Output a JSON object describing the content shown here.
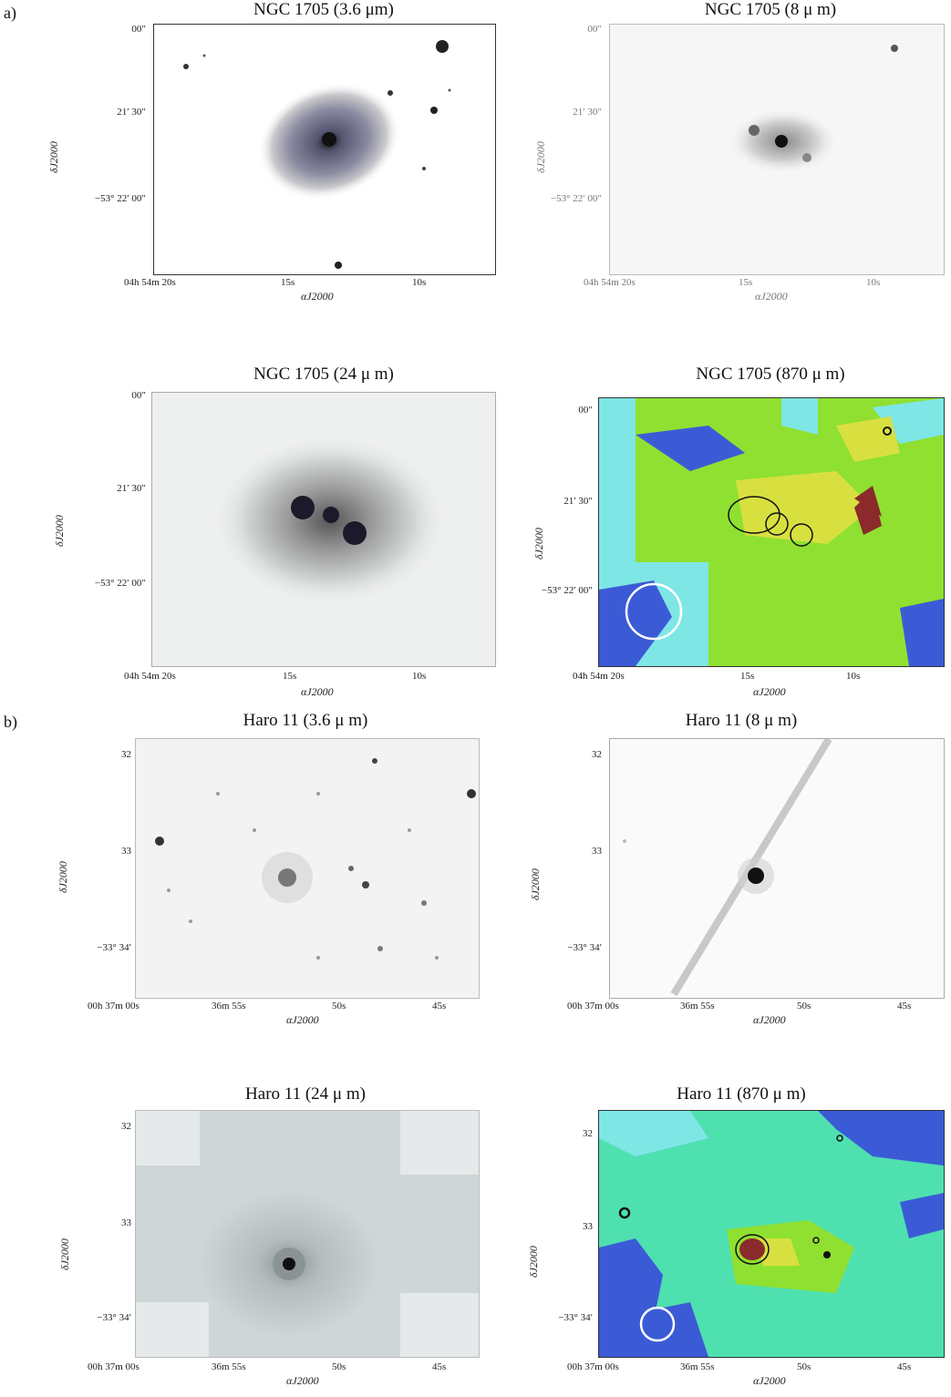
{
  "section_a": "a)",
  "section_b": "b)",
  "panels": {
    "p1": {
      "title": "NGC 1705 (3.6 μm)",
      "yticks": [
        "00″",
        "21′ 30″",
        "−53° 22′ 00″"
      ],
      "xticks": [
        "04h 54m 20s",
        "15s",
        "10s"
      ],
      "xlabel": "αJ2000",
      "ylabel": "δJ2000"
    },
    "p2": {
      "title": "NGC 1705 (8 μ m)",
      "yticks": [
        "00″",
        "21′ 30″",
        "−53° 22′ 00″"
      ],
      "xticks": [
        "04h 54m 20s",
        "15s",
        "10s"
      ],
      "xlabel": "αJ2000",
      "ylabel": "δJ2000"
    },
    "p3": {
      "title": "NGC 1705 (24 μ m)",
      "yticks": [
        "00″",
        "21′ 30″",
        "−53° 22′ 00″"
      ],
      "xticks": [
        "04h 54m 20s",
        "15s",
        "10s"
      ],
      "xlabel": "αJ2000",
      "ylabel": "δJ2000"
    },
    "p4": {
      "title": "NGC 1705 (870 μ m)",
      "yticks": [
        "00″",
        "21′ 30″",
        "−53° 22′ 00″"
      ],
      "xticks": [
        "04h 54m 20s",
        "15s",
        "10s"
      ],
      "xlabel": "αJ2000",
      "ylabel": "δJ2000"
    },
    "p5": {
      "title": "Haro 11 (3.6 μ m)",
      "yticks": [
        "32",
        "33",
        "−33° 34′"
      ],
      "xticks": [
        "00h 37m 00s",
        "36m 55s",
        "50s",
        "45s"
      ],
      "xlabel": "αJ2000",
      "ylabel": "δJ2000"
    },
    "p6": {
      "title": "Haro 11 (8 μ m)",
      "yticks": [
        "32",
        "33",
        "−33° 34′"
      ],
      "xticks": [
        "00h 37m 00s",
        "36m 55s",
        "50s",
        "45s"
      ],
      "xlabel": "αJ2000",
      "ylabel": "δJ2000"
    },
    "p7": {
      "title": "Haro 11 (24 μ m)",
      "yticks": [
        "32",
        "33",
        "−33° 34′"
      ],
      "xticks": [
        "00h 37m 00s",
        "36m 55s",
        "50s",
        "45s"
      ],
      "xlabel": "αJ2000",
      "ylabel": "δJ2000"
    },
    "p8": {
      "title": "Haro 11 (870 μ m)",
      "yticks": [
        "32",
        "33",
        "−33° 34′"
      ],
      "xticks": [
        "00h 37m 00s",
        "36m 55s",
        "50s",
        "45s"
      ],
      "xlabel": "αJ2000",
      "ylabel": "δJ2000"
    }
  },
  "colors": {
    "map_blue": "#3b5bd6",
    "map_cyan": "#7fe6e6",
    "map_teal": "#4fe0b0",
    "map_green": "#8fe030",
    "map_yellow": "#d8e040",
    "map_red": "#8a2a2a"
  }
}
